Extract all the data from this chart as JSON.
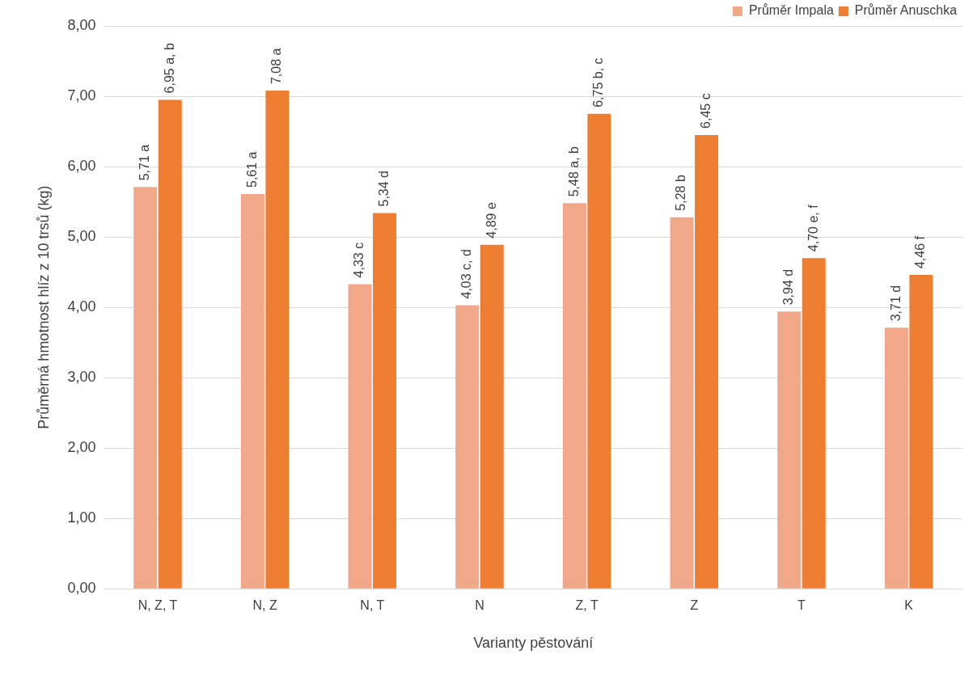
{
  "chart_data": {
    "type": "bar",
    "xlabel": "Varianty pěstování",
    "ylabel": "Průměrná hmotnost hlíz z 10 trsů (kg)",
    "categories": [
      "N, Z, T",
      "N, Z",
      "N, T",
      "N",
      "Z, T",
      "Z",
      "T",
      "K"
    ],
    "series": [
      {
        "name": "Průměr Impala",
        "color": "#f1a889",
        "values": [
          5.71,
          5.61,
          4.33,
          4.03,
          5.48,
          5.28,
          3.94,
          3.71
        ],
        "value_labels": [
          "5,71 a",
          "5,61 a",
          "4,33 c",
          "4,03 c, d",
          "5,48 a, b",
          "5,28 b",
          "3,94 d",
          "3,71 d"
        ]
      },
      {
        "name": "Průměr Anuschka",
        "color": "#ed7d31",
        "values": [
          6.95,
          7.08,
          5.34,
          4.89,
          6.75,
          6.45,
          4.7,
          4.46
        ],
        "value_labels": [
          "6,95 a, b",
          "7,08 a",
          "5,34 d",
          "4,89 e",
          "6,75 b, c",
          "6,45 c",
          "4,70 e, f",
          "4,46 f"
        ]
      }
    ],
    "ylim": [
      0,
      8
    ],
    "yticks": [
      {
        "value": 0,
        "label": "0,00"
      },
      {
        "value": 1,
        "label": "1,00"
      },
      {
        "value": 2,
        "label": "2,00"
      },
      {
        "value": 3,
        "label": "3,00"
      },
      {
        "value": 4,
        "label": "4,00"
      },
      {
        "value": 5,
        "label": "5,00"
      },
      {
        "value": 6,
        "label": "6,00"
      },
      {
        "value": 7,
        "label": "7,00"
      },
      {
        "value": 8,
        "label": "8,00"
      }
    ],
    "grid": "y",
    "legend": "top right"
  }
}
